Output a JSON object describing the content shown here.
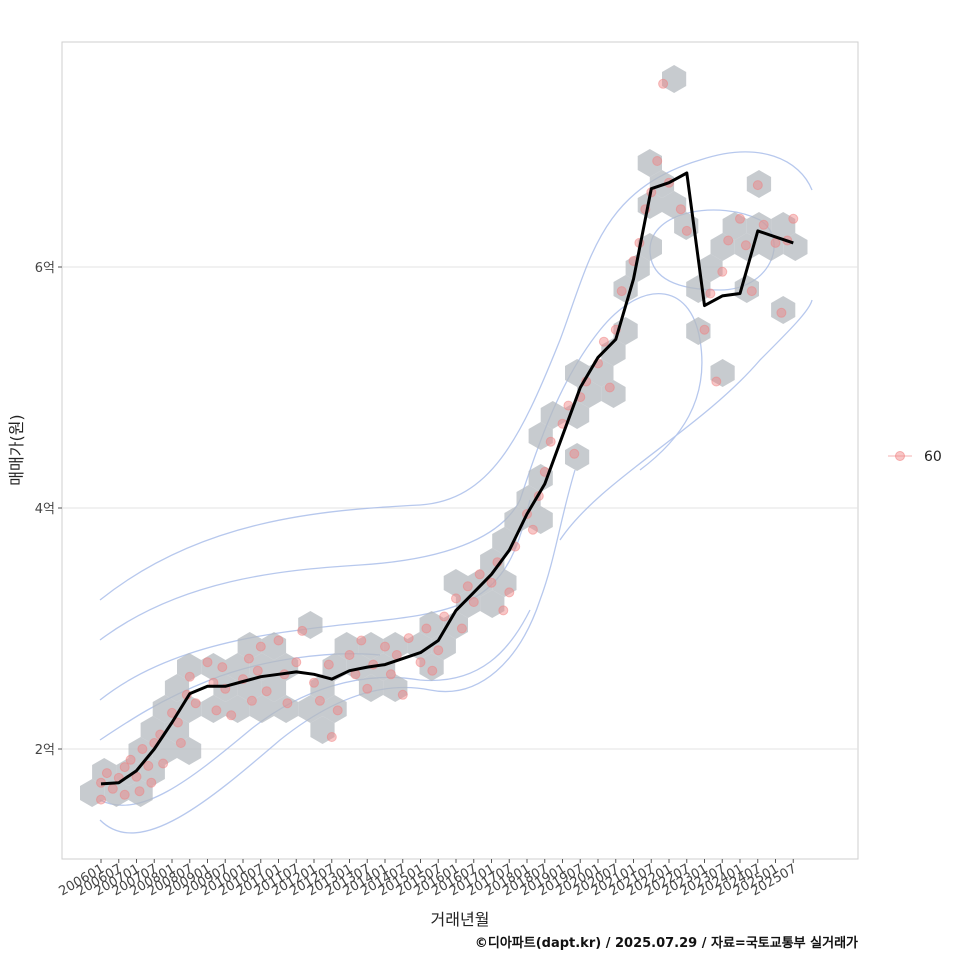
{
  "chart_data": {
    "type": "scatter",
    "xlabel": "거래년월",
    "ylabel": "매매가(원)",
    "caption": "©디아파트(dapt.kr) / 2025.07.29 / 자료=국토교통부 실거래가",
    "legend": {
      "position": "right",
      "entries": [
        "60"
      ]
    },
    "grid": true,
    "x_ticks": [
      "200601",
      "200607",
      "200701",
      "200707",
      "200801",
      "200807",
      "200901",
      "200907",
      "201001",
      "201007",
      "201101",
      "201107",
      "201201",
      "201207",
      "201301",
      "201307",
      "201401",
      "201407",
      "201501",
      "201507",
      "201601",
      "201607",
      "201701",
      "201707",
      "201801",
      "201807",
      "201901",
      "201907",
      "202001",
      "202007",
      "202101",
      "202107",
      "202201",
      "202207",
      "202301",
      "202307",
      "202401",
      "202407",
      "202501",
      "202507"
    ],
    "y_ticks": [
      {
        "value": 200000000,
        "label": "2억"
      },
      {
        "value": 400000000,
        "label": "4억"
      },
      {
        "value": 600000000,
        "label": "6억"
      }
    ],
    "ylim": [
      115000000,
      790000000
    ],
    "colors": {
      "points": "#f08080",
      "trend": "#000000",
      "hex": "#b4b9bf",
      "contour": "#9fb6e8",
      "grid": "#e3e3e3"
    },
    "series": [
      {
        "name": "60",
        "trend_x": [
          "200601",
          "200607",
          "200701",
          "200707",
          "200801",
          "200807",
          "200901",
          "200907",
          "201001",
          "201007",
          "201101",
          "201107",
          "201201",
          "201207",
          "201301",
          "201307",
          "201401",
          "201407",
          "201501",
          "201507",
          "201601",
          "201607",
          "201701",
          "201707",
          "201801",
          "201807",
          "201901",
          "201907",
          "202001",
          "202007",
          "202101",
          "202107",
          "202201",
          "202207",
          "202301",
          "202307",
          "202401",
          "202407",
          "202501",
          "202507"
        ],
        "trend_y": [
          171000000,
          172000000,
          182000000,
          200000000,
          222000000,
          246000000,
          252000000,
          252000000,
          256000000,
          260000000,
          262000000,
          264000000,
          262000000,
          258000000,
          265000000,
          268000000,
          270000000,
          275000000,
          280000000,
          290000000,
          315000000,
          330000000,
          345000000,
          365000000,
          395000000,
          420000000,
          460000000,
          500000000,
          525000000,
          540000000,
          590000000,
          665000000,
          670000000,
          678000000,
          568000000,
          576000000,
          578000000,
          630000000,
          625000000,
          620000000
        ],
        "points": [
          [
            "200601",
            172000000
          ],
          [
            "200601",
            158000000
          ],
          [
            "200603",
            180000000
          ],
          [
            "200605",
            167000000
          ],
          [
            "200607",
            176000000
          ],
          [
            "200609",
            185000000
          ],
          [
            "200609",
            162000000
          ],
          [
            "200611",
            191000000
          ],
          [
            "200701",
            177000000
          ],
          [
            "200702",
            165000000
          ],
          [
            "200703",
            200000000
          ],
          [
            "200705",
            186000000
          ],
          [
            "200706",
            172000000
          ],
          [
            "200707",
            205000000
          ],
          [
            "200709",
            212000000
          ],
          [
            "200710",
            188000000
          ],
          [
            "200801",
            230000000
          ],
          [
            "200803",
            222000000
          ],
          [
            "200804",
            205000000
          ],
          [
            "200806",
            245000000
          ],
          [
            "200807",
            260000000
          ],
          [
            "200809",
            238000000
          ],
          [
            "200901",
            272000000
          ],
          [
            "200903",
            255000000
          ],
          [
            "200904",
            232000000
          ],
          [
            "200906",
            268000000
          ],
          [
            "200907",
            250000000
          ],
          [
            "200909",
            228000000
          ],
          [
            "201001",
            258000000
          ],
          [
            "201003",
            275000000
          ],
          [
            "201004",
            240000000
          ],
          [
            "201006",
            265000000
          ],
          [
            "201007",
            285000000
          ],
          [
            "201009",
            248000000
          ],
          [
            "201101",
            290000000
          ],
          [
            "201103",
            262000000
          ],
          [
            "201104",
            238000000
          ],
          [
            "201107",
            272000000
          ],
          [
            "201109",
            298000000
          ],
          [
            "201201",
            255000000
          ],
          [
            "201203",
            240000000
          ],
          [
            "201206",
            270000000
          ],
          [
            "201207",
            210000000
          ],
          [
            "201209",
            232000000
          ],
          [
            "201301",
            278000000
          ],
          [
            "201303",
            262000000
          ],
          [
            "201305",
            290000000
          ],
          [
            "201307",
            250000000
          ],
          [
            "201309",
            270000000
          ],
          [
            "201401",
            285000000
          ],
          [
            "201403",
            262000000
          ],
          [
            "201405",
            278000000
          ],
          [
            "201407",
            245000000
          ],
          [
            "201409",
            292000000
          ],
          [
            "201501",
            272000000
          ],
          [
            "201503",
            300000000
          ],
          [
            "201505",
            265000000
          ],
          [
            "201507",
            282000000
          ],
          [
            "201509",
            310000000
          ],
          [
            "201601",
            325000000
          ],
          [
            "201603",
            300000000
          ],
          [
            "201605",
            335000000
          ],
          [
            "201607",
            322000000
          ],
          [
            "201609",
            345000000
          ],
          [
            "201701",
            338000000
          ],
          [
            "201703",
            355000000
          ],
          [
            "201705",
            315000000
          ],
          [
            "201707",
            330000000
          ],
          [
            "201709",
            368000000
          ],
          [
            "201801",
            395000000
          ],
          [
            "201803",
            382000000
          ],
          [
            "201805",
            410000000
          ],
          [
            "201807",
            430000000
          ],
          [
            "201809",
            455000000
          ],
          [
            "201901",
            470000000
          ],
          [
            "201903",
            485000000
          ],
          [
            "201905",
            445000000
          ],
          [
            "201907",
            492000000
          ],
          [
            "201909",
            505000000
          ],
          [
            "202001",
            520000000
          ],
          [
            "202003",
            538000000
          ],
          [
            "202005",
            500000000
          ],
          [
            "202007",
            548000000
          ],
          [
            "202009",
            580000000
          ],
          [
            "202101",
            605000000
          ],
          [
            "202103",
            620000000
          ],
          [
            "202105",
            648000000
          ],
          [
            "202107",
            662000000
          ],
          [
            "202109",
            688000000
          ],
          [
            "202111",
            752000000
          ],
          [
            "202201",
            670000000
          ],
          [
            "202205",
            648000000
          ],
          [
            "202207",
            630000000
          ],
          [
            "202301",
            548000000
          ],
          [
            "202303",
            578000000
          ],
          [
            "202305",
            505000000
          ],
          [
            "202307",
            596000000
          ],
          [
            "202309",
            622000000
          ],
          [
            "202401",
            640000000
          ],
          [
            "202403",
            618000000
          ],
          [
            "202405",
            580000000
          ],
          [
            "202407",
            668000000
          ],
          [
            "202409",
            635000000
          ],
          [
            "202501",
            620000000
          ],
          [
            "202503",
            562000000
          ],
          [
            "202505",
            622000000
          ],
          [
            "202507",
            640000000
          ]
        ]
      }
    ]
  }
}
